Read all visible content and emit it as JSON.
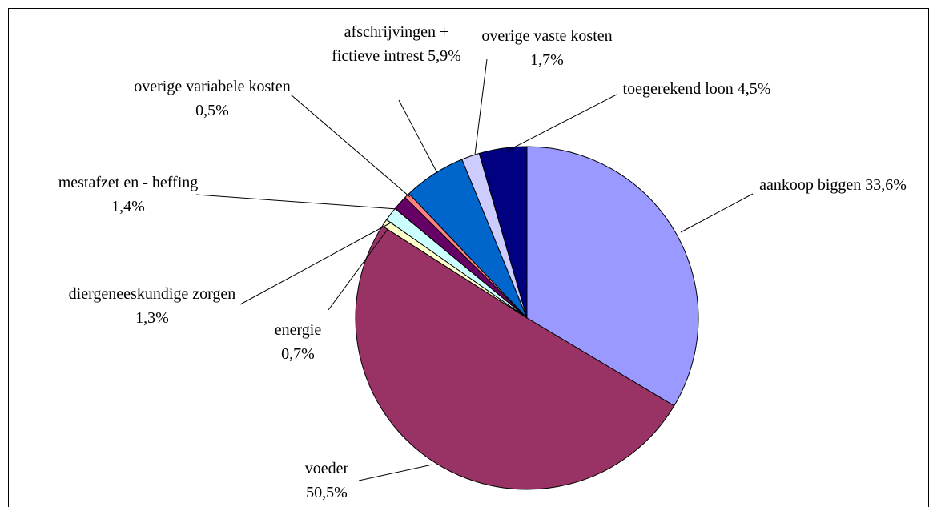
{
  "chart_data": {
    "type": "pie",
    "categories": [
      "aankoop biggen",
      "voeder",
      "energie",
      "diergeneeskundige zorgen",
      "mestafzet en - heffing",
      "overige variabele kosten",
      "afschrijvingen + fictieve intrest",
      "overige vaste kosten",
      "toegerekend loon"
    ],
    "values": [
      33.6,
      50.5,
      0.7,
      1.3,
      1.4,
      0.5,
      5.9,
      1.7,
      4.5
    ],
    "value_labels": [
      "33,6%",
      "50,5%",
      "0,7%",
      "1,3%",
      "1,4%",
      "0,5%",
      "5,9%",
      "1,7%",
      "4,5%"
    ],
    "colors": [
      "#9999ff",
      "#993366",
      "#ffffcc",
      "#ccffff",
      "#660066",
      "#ff8080",
      "#0066cc",
      "#ccccff",
      "#000080"
    ]
  }
}
